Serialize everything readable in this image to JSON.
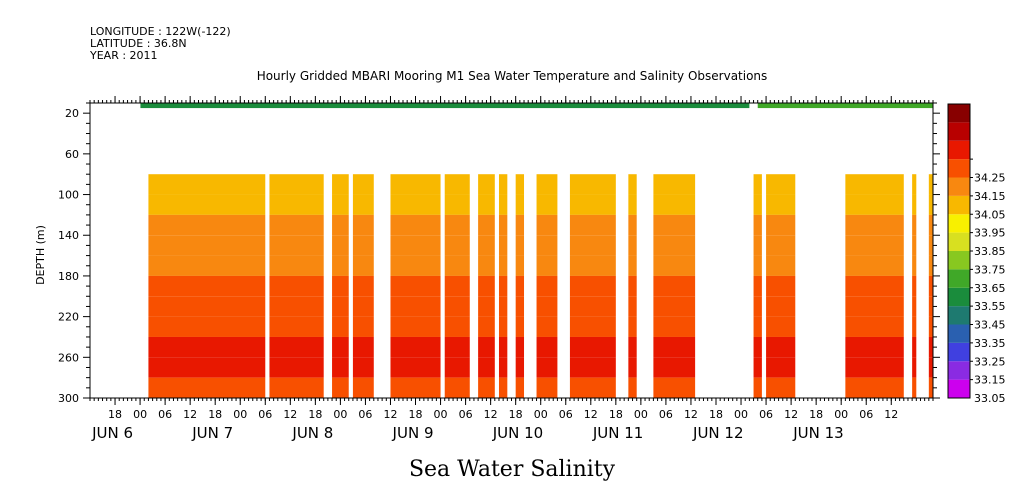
{
  "meta": {
    "longitude": "LONGITUDE : 122W(-122)",
    "latitude": "LATITUDE : 36.8N",
    "year": "YEAR : 2011"
  },
  "chart_data": {
    "type": "heatmap",
    "title": "Hourly Gridded MBARI Mooring M1 Sea Water Temperature and Salinity Observations",
    "xlabel": "Sea Water Salinity",
    "ylabel": "DEPTH (m)",
    "ylim": [
      300,
      10
    ],
    "xlim": [
      "2011-06-05T12:00",
      "2011-06-13T22:00"
    ],
    "yticks": [
      20,
      60,
      100,
      140,
      180,
      220,
      260,
      300
    ],
    "hour_ticks": [
      {
        "t": "2011-06-05T18:00",
        "label": "18"
      },
      {
        "t": "2011-06-06T00:00",
        "label": "00"
      },
      {
        "t": "2011-06-06T06:00",
        "label": "06"
      },
      {
        "t": "2011-06-06T12:00",
        "label": "12"
      },
      {
        "t": "2011-06-06T18:00",
        "label": "18"
      },
      {
        "t": "2011-06-07T00:00",
        "label": "00"
      },
      {
        "t": "2011-06-07T06:00",
        "label": "06"
      },
      {
        "t": "2011-06-07T12:00",
        "label": "12"
      },
      {
        "t": "2011-06-07T18:00",
        "label": "18"
      },
      {
        "t": "2011-06-08T00:00",
        "label": "00"
      },
      {
        "t": "2011-06-08T06:00",
        "label": "06"
      },
      {
        "t": "2011-06-08T12:00",
        "label": "12"
      },
      {
        "t": "2011-06-08T18:00",
        "label": "18"
      },
      {
        "t": "2011-06-09T00:00",
        "label": "00"
      },
      {
        "t": "2011-06-09T06:00",
        "label": "06"
      },
      {
        "t": "2011-06-09T12:00",
        "label": "12"
      },
      {
        "t": "2011-06-09T18:00",
        "label": "18"
      },
      {
        "t": "2011-06-10T00:00",
        "label": "00"
      },
      {
        "t": "2011-06-10T06:00",
        "label": "06"
      },
      {
        "t": "2011-06-10T12:00",
        "label": "12"
      },
      {
        "t": "2011-06-10T18:00",
        "label": "18"
      },
      {
        "t": "2011-06-11T00:00",
        "label": "00"
      },
      {
        "t": "2011-06-11T06:00",
        "label": "06"
      },
      {
        "t": "2011-06-11T12:00",
        "label": "12"
      },
      {
        "t": "2011-06-11T18:00",
        "label": "18"
      },
      {
        "t": "2011-06-12T00:00",
        "label": "00"
      },
      {
        "t": "2011-06-12T06:00",
        "label": "06"
      },
      {
        "t": "2011-06-12T12:00",
        "label": "12"
      },
      {
        "t": "2011-06-12T18:00",
        "label": "18"
      },
      {
        "t": "2011-06-13T00:00",
        "label": "00"
      },
      {
        "t": "2011-06-13T06:00",
        "label": "06"
      },
      {
        "t": "2011-06-13T12:00",
        "label": "12"
      }
    ],
    "day_labels": [
      {
        "t": "2011-06-06T00:00",
        "label": "JUN  6"
      },
      {
        "t": "2011-06-07T00:00",
        "label": "JUN  7"
      },
      {
        "t": "2011-06-08T00:00",
        "label": "JUN  8"
      },
      {
        "t": "2011-06-09T00:00",
        "label": "JUN  9"
      },
      {
        "t": "2011-06-10T00:00",
        "label": "JUN 10"
      },
      {
        "t": "2011-06-11T00:00",
        "label": "JUN 11"
      },
      {
        "t": "2011-06-12T00:00",
        "label": "JUN 12"
      },
      {
        "t": "2011-06-13T00:00",
        "label": "JUN 13"
      }
    ],
    "colorbar": {
      "levels": [
        33.05,
        33.15,
        33.25,
        33.35,
        33.45,
        33.55,
        33.65,
        33.75,
        33.85,
        33.95,
        34.05,
        34.15,
        34.25
      ],
      "colors": [
        "#cc00ee",
        "#8a2be2",
        "#4040e0",
        "#2a60b0",
        "#1e7a70",
        "#1a8c3c",
        "#40a828",
        "#88c820",
        "#d8e020",
        "#f8f000",
        "#f8b800",
        "#f88810",
        "#f85000",
        "#e81800",
        "#b80000",
        "#880000"
      ]
    },
    "surface_band": {
      "depth_top": 10,
      "depth_bottom": 15,
      "salinity_approx": 33.45,
      "gap": [
        "2011-06-12T02:00",
        "2011-06-12T04:00"
      ]
    },
    "deep_profile": {
      "depth_start": 80,
      "depth_end": 300,
      "depth_levels": [
        80,
        100,
        120,
        140,
        160,
        180,
        200,
        220,
        240,
        260,
        280,
        300
      ],
      "salinity": [
        33.98,
        34.01,
        34.05,
        34.09,
        34.13,
        34.14,
        34.16,
        34.2,
        34.24,
        34.27,
        34.23,
        34.19
      ]
    },
    "data_segments": [
      [
        "2011-06-06T02:00",
        "2011-06-07T06:00"
      ],
      [
        "2011-06-07T07:00",
        "2011-06-07T20:00"
      ],
      [
        "2011-06-07T22:00",
        "2011-06-08T02:00"
      ],
      [
        "2011-06-08T03:00",
        "2011-06-08T08:00"
      ],
      [
        "2011-06-08T12:00",
        "2011-06-09T00:00"
      ],
      [
        "2011-06-09T01:00",
        "2011-06-09T07:00"
      ],
      [
        "2011-06-09T09:00",
        "2011-06-09T13:00"
      ],
      [
        "2011-06-09T14:00",
        "2011-06-09T16:00"
      ],
      [
        "2011-06-09T18:00",
        "2011-06-09T20:00"
      ],
      [
        "2011-06-09T23:00",
        "2011-06-10T04:00"
      ],
      [
        "2011-06-10T07:00",
        "2011-06-10T18:00"
      ],
      [
        "2011-06-10T21:00",
        "2011-06-10T23:00"
      ],
      [
        "2011-06-11T03:00",
        "2011-06-11T13:00"
      ],
      [
        "2011-06-12T03:00",
        "2011-06-12T05:00"
      ],
      [
        "2011-06-12T06:00",
        "2011-06-12T13:00"
      ],
      [
        "2011-06-13T01:00",
        "2011-06-13T15:00"
      ],
      [
        "2011-06-13T17:00",
        "2011-06-13T18:00"
      ],
      [
        "2011-06-13T21:00",
        "2011-06-13T22:00"
      ]
    ]
  }
}
